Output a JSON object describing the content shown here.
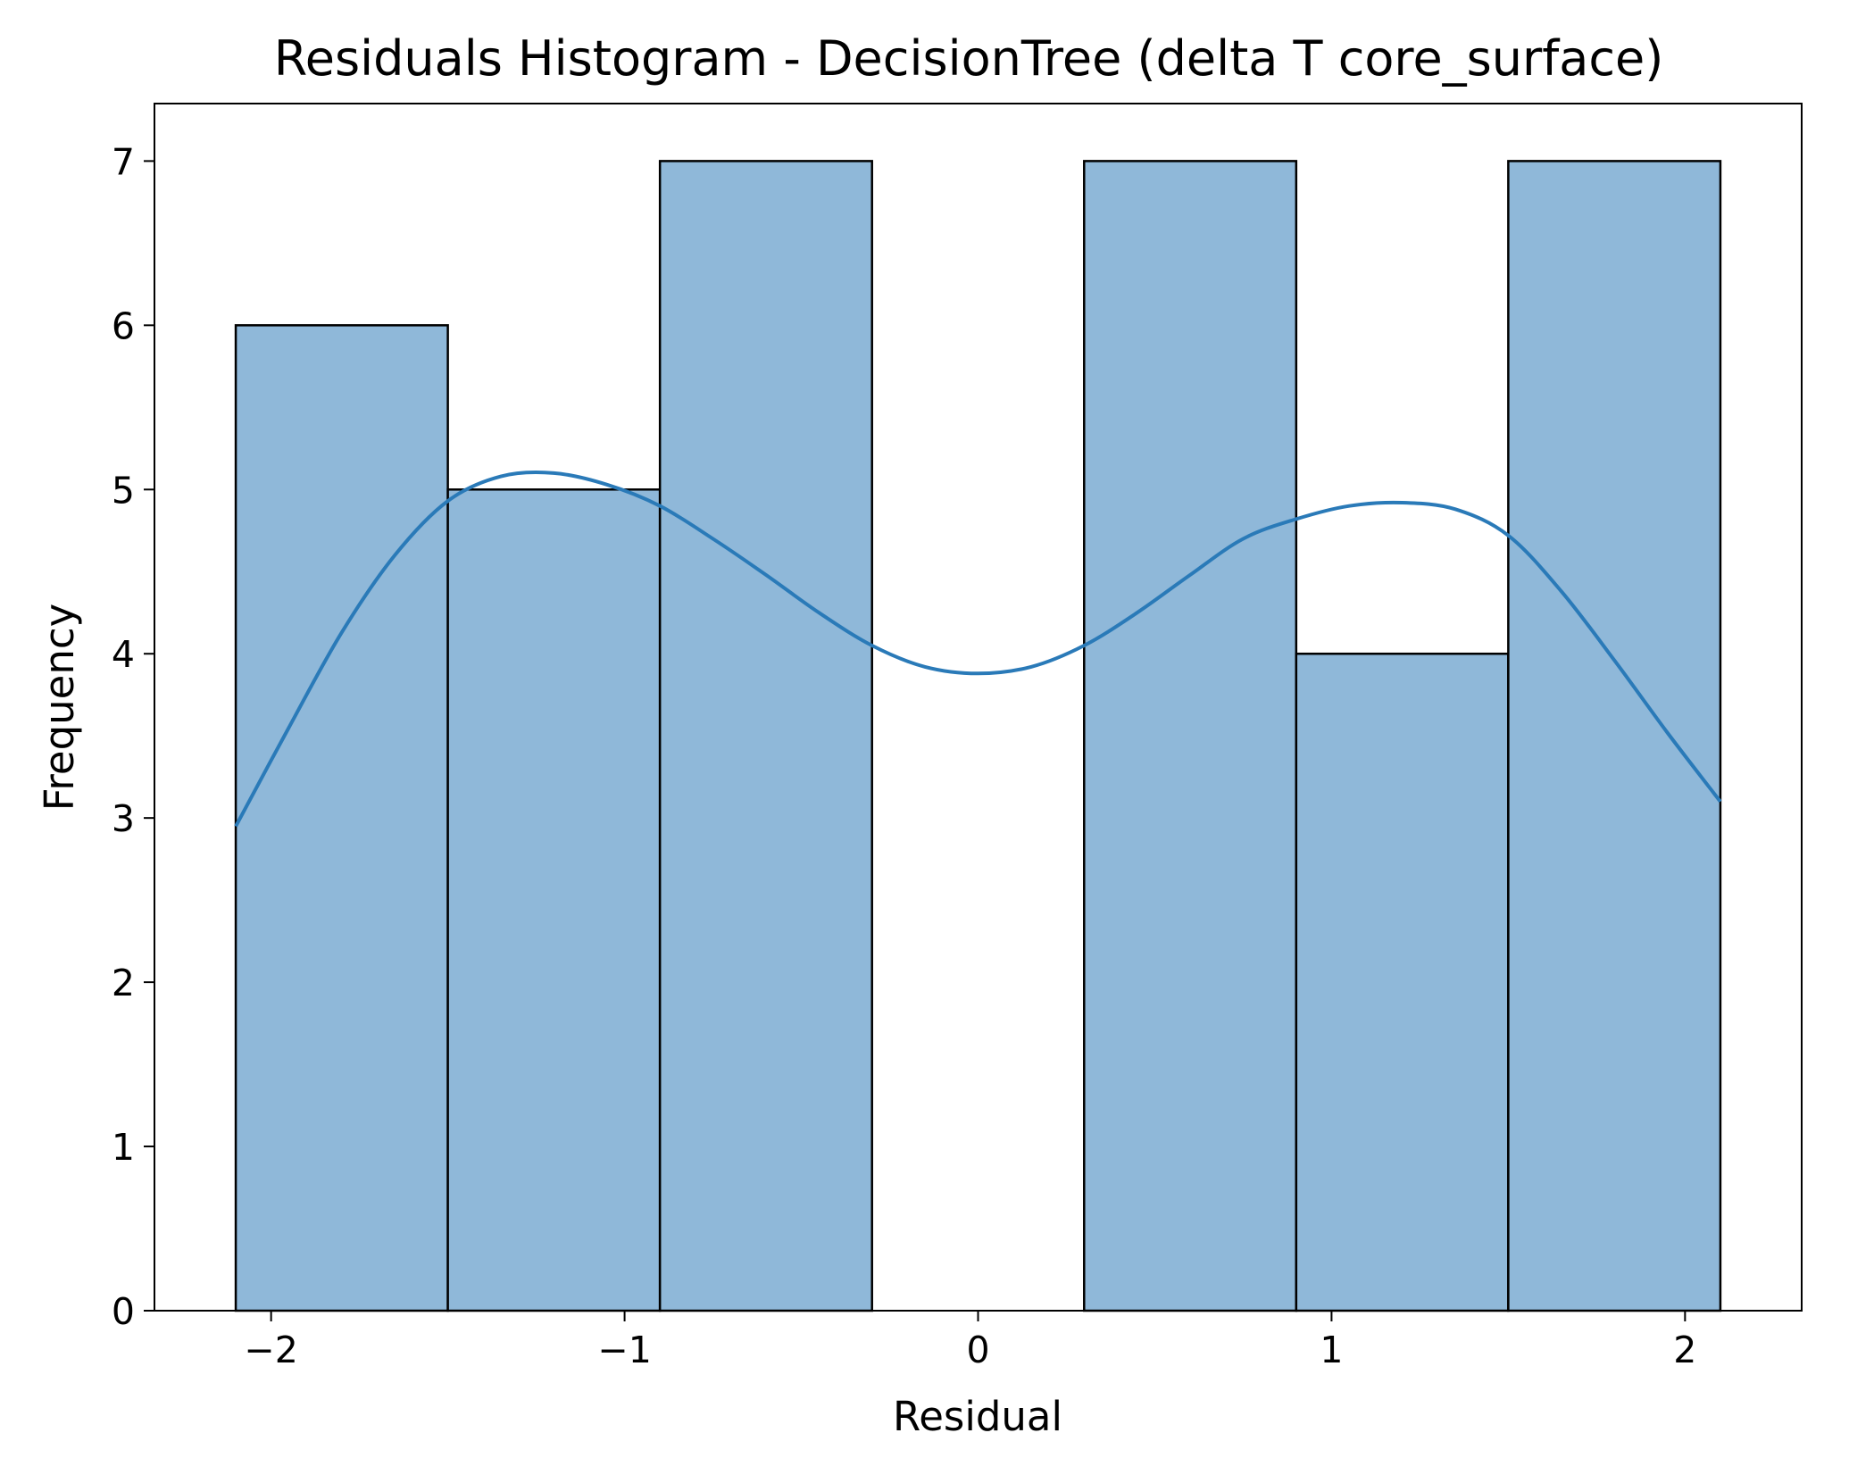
{
  "chart_data": {
    "type": "bar",
    "title": "Residuals Histogram - DecisionTree (delta T core_surface)",
    "xlabel": "Residual",
    "ylabel": "Frequency",
    "xlim": [
      -2.33,
      2.33
    ],
    "ylim": [
      0,
      7.35
    ],
    "xticks": [
      -2,
      -1,
      0,
      1,
      2
    ],
    "xtick_labels": [
      "−2",
      "−1",
      "0",
      "1",
      "2"
    ],
    "yticks": [
      0,
      1,
      2,
      3,
      4,
      5,
      6,
      7
    ],
    "ytick_labels": [
      "0",
      "1",
      "2",
      "3",
      "4",
      "5",
      "6",
      "7"
    ],
    "bins": [
      {
        "x0": -2.1,
        "x1": -1.5,
        "count": 6
      },
      {
        "x0": -1.5,
        "x1": -0.9,
        "count": 5
      },
      {
        "x0": -0.9,
        "x1": -0.3,
        "count": 7
      },
      {
        "x0": -0.3,
        "x1": 0.3,
        "count": 0
      },
      {
        "x0": 0.3,
        "x1": 0.9,
        "count": 7
      },
      {
        "x0": 0.9,
        "x1": 1.5,
        "count": 4
      },
      {
        "x0": 1.5,
        "x1": 2.1,
        "count": 7
      }
    ],
    "kde": {
      "x": [
        -2.1,
        -1.95,
        -1.8,
        -1.65,
        -1.5,
        -1.35,
        -1.2,
        -1.05,
        -0.9,
        -0.75,
        -0.6,
        -0.45,
        -0.3,
        -0.15,
        0.0,
        0.15,
        0.3,
        0.45,
        0.6,
        0.75,
        0.9,
        1.05,
        1.2,
        1.35,
        1.5,
        1.65,
        1.8,
        1.95,
        2.1
      ],
      "y": [
        2.95,
        3.55,
        4.13,
        4.6,
        4.93,
        5.08,
        5.1,
        5.03,
        4.9,
        4.7,
        4.48,
        4.25,
        4.05,
        3.92,
        3.88,
        3.92,
        4.05,
        4.25,
        4.48,
        4.7,
        4.82,
        4.9,
        4.92,
        4.88,
        4.72,
        4.38,
        3.96,
        3.52,
        3.1
      ]
    },
    "grid": false,
    "legend": "none",
    "colors": {
      "bar_fill": "#8fb8d9",
      "bar_edge": "#000000",
      "kde_line": "#2a7ab8",
      "axis": "#000000"
    }
  }
}
